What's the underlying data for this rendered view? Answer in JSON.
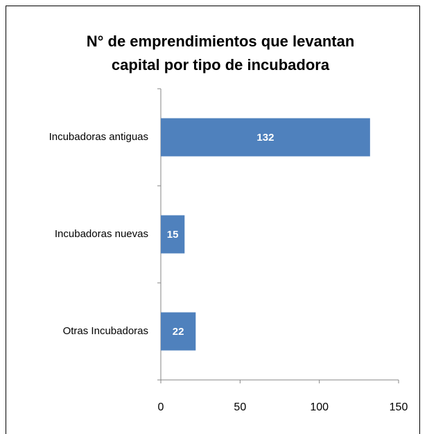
{
  "chart_data": {
    "type": "bar",
    "orientation": "horizontal",
    "title": [
      "N° de emprendimientos que levantan",
      "capital por tipo de incubadora"
    ],
    "categories": [
      "Incubadoras antiguas",
      "Incubadoras nuevas",
      "Otras Incubadoras"
    ],
    "values": [
      132,
      15,
      22
    ],
    "color": "#4f81bd",
    "xlim": [
      0,
      150
    ],
    "xticks": [
      0,
      50,
      100,
      150
    ],
    "grid": false
  }
}
